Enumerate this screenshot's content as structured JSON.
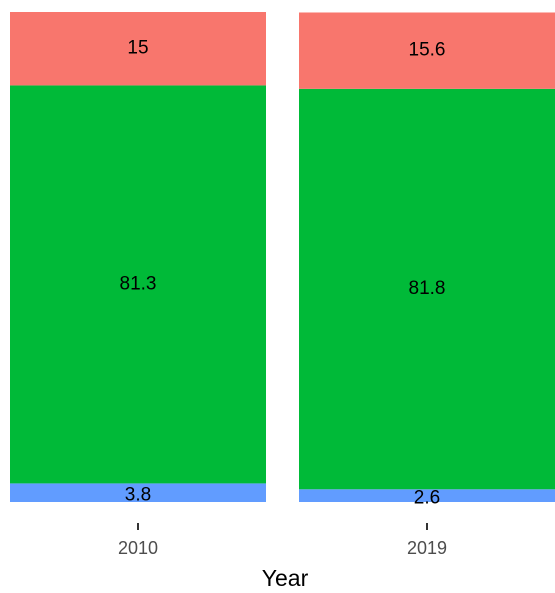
{
  "chart_data": {
    "type": "stacked_bar",
    "x_label": "Year",
    "categories": [
      "2010",
      "2019"
    ],
    "series": [
      {
        "color": "#619CFF",
        "values": [
          3.8,
          2.6
        ]
      },
      {
        "color": "#00BA38",
        "values": [
          81.3,
          81.8
        ]
      },
      {
        "color": "#F8766D",
        "values": [
          15,
          15.6
        ]
      }
    ]
  }
}
